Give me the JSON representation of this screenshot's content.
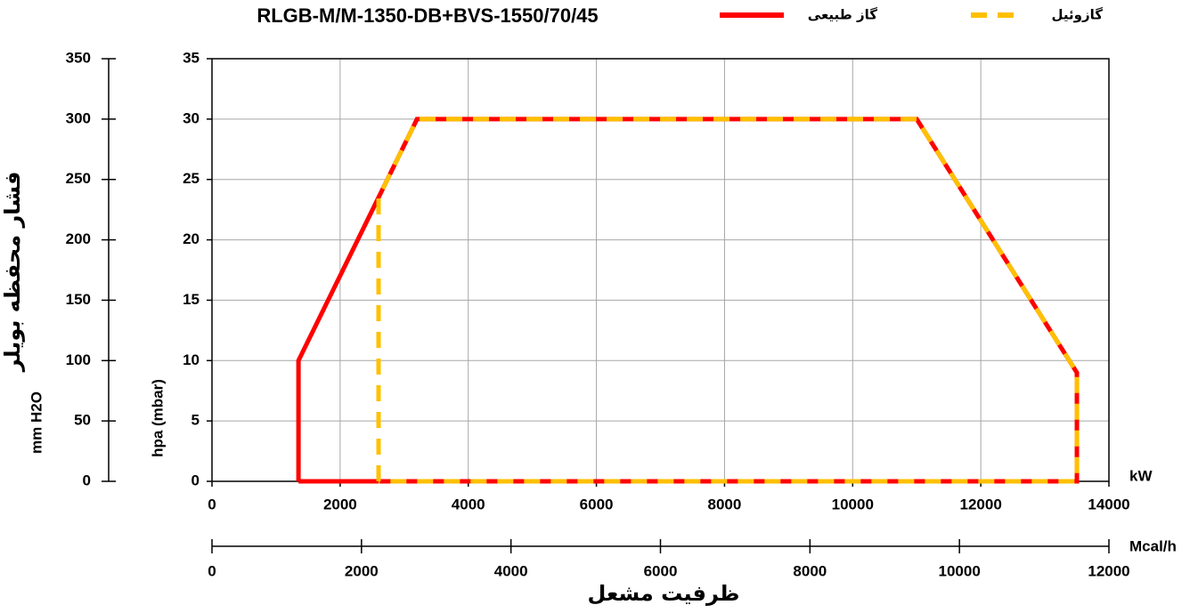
{
  "chart_data": {
    "type": "line",
    "title": "RLGB-M/M-1350-DB+BVS-1550/70/45",
    "xlabel": "kW",
    "ylabel": "hpa (mbar)",
    "x2label": "Mcal/h",
    "y2label": "mm H2O",
    "x_title": "ظرفیت مشعل",
    "y_title": "فشار محفظه بویلر",
    "xlim": [
      0,
      14000
    ],
    "xticks": [
      0,
      2000,
      4000,
      6000,
      8000,
      10000,
      12000,
      14000
    ],
    "ylim": [
      0,
      35
    ],
    "yticks": [
      0,
      5,
      10,
      15,
      20,
      25,
      30,
      35
    ],
    "x2lim": [
      0,
      12000
    ],
    "x2ticks": [
      0,
      2000,
      4000,
      6000,
      8000,
      10000,
      12000
    ],
    "y2lim": [
      0,
      350
    ],
    "y2ticks": [
      0,
      50,
      100,
      150,
      200,
      250,
      300,
      350
    ],
    "grid": true,
    "series": [
      {
        "name": "گاز طبیعی",
        "color": "#ff0000",
        "style": "solid",
        "x": [
          1350,
          1350,
          3200,
          11000,
          13500,
          13500,
          1350
        ],
        "values": [
          0,
          10,
          30,
          30,
          9,
          0,
          0
        ]
      },
      {
        "name": "گازوئیل",
        "color": "#ffc000",
        "style": "dashed",
        "x": [
          2600,
          2600,
          3200,
          11000,
          13500,
          13500,
          2600
        ],
        "values": [
          0,
          23.5,
          30,
          30,
          9,
          0,
          0
        ]
      }
    ]
  }
}
